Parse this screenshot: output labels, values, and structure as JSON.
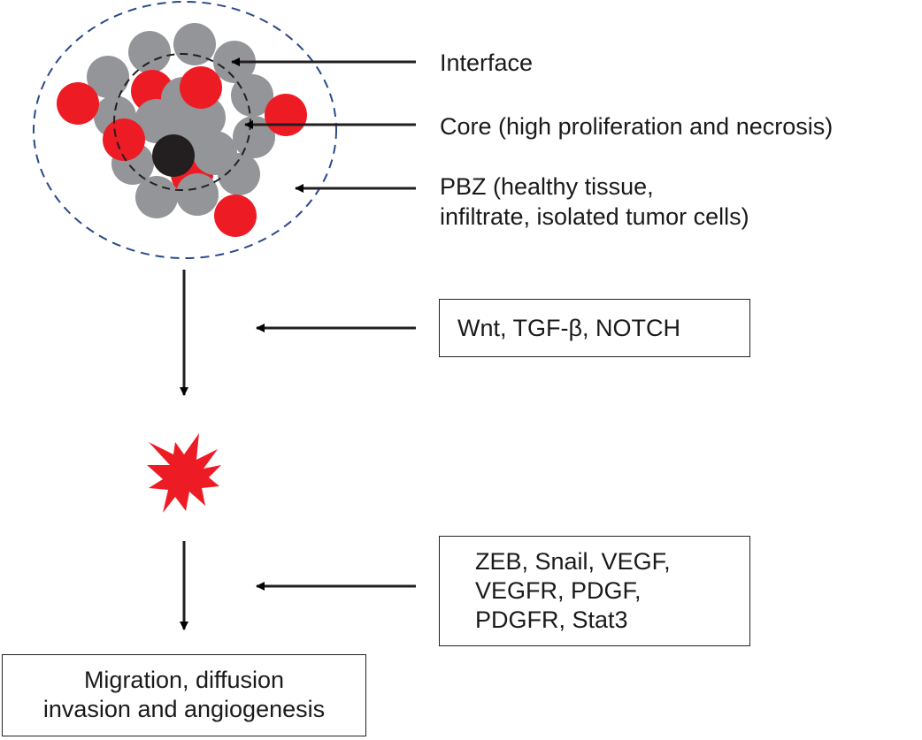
{
  "labels": {
    "interface": "Interface",
    "core": "Core (high proliferation and necrosis)",
    "pbz_line1": "PBZ (healthy tissue,",
    "pbz_line2": "infiltrate, isolated tumor cells)"
  },
  "boxes": {
    "signals_1": "Wnt, TGF-β, NOTCH",
    "signals_2": [
      "ZEB, Snail, VEGF,",
      "VEGFR, PDGF,",
      "PDGFR, Stat3"
    ],
    "outcome": [
      "Migration, diffusion",
      "invasion and angiogenesis"
    ]
  },
  "colors": {
    "tumor_cell": "#ed1c24",
    "normal_cell": "#939598",
    "necrotic_cell": "#231f20",
    "pbz_boundary": "#2b4a8a",
    "arrow": "#231f20"
  }
}
